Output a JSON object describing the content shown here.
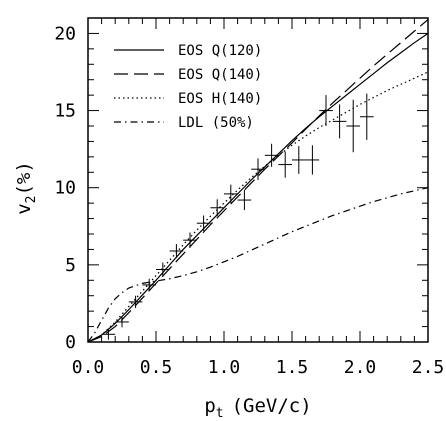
{
  "chart_data": {
    "type": "line",
    "title": "",
    "xlabel": "p",
    "xlabel_sub": "t",
    "xlabel_unit": "(GeV/c)",
    "ylabel": "v",
    "ylabel_sub": "2",
    "ylabel_unit": "(%)",
    "xlim": [
      0,
      2.5
    ],
    "ylim": [
      0,
      21
    ],
    "xticks": [
      "0.0",
      "0.5",
      "1.0",
      "1.5",
      "2.0",
      "2.5"
    ],
    "yticks": [
      "0",
      "5",
      "10",
      "15",
      "20"
    ],
    "grid": false,
    "legend_position": "top-left",
    "series": [
      {
        "name": "EOS Q(120)",
        "style": "solid",
        "x": [
          0.0,
          0.1,
          0.2,
          0.3,
          0.4,
          0.5,
          0.6,
          0.7,
          0.8,
          0.9,
          1.0,
          1.1,
          1.2,
          1.3,
          1.4,
          1.5,
          1.6,
          1.7,
          1.8,
          1.9,
          2.0,
          2.1,
          2.2,
          2.3,
          2.4,
          2.5
        ],
        "y": [
          0.0,
          0.45,
          1.2,
          2.1,
          3.05,
          4.0,
          5.0,
          6.0,
          6.9,
          7.8,
          8.7,
          9.6,
          10.5,
          11.35,
          12.2,
          13.05,
          13.85,
          14.6,
          15.3,
          16.0,
          16.7,
          17.4,
          18.1,
          18.75,
          19.4,
          20.0
        ]
      },
      {
        "name": "EOS Q(140)",
        "style": "dashed",
        "x": [
          0.0,
          0.1,
          0.2,
          0.3,
          0.4,
          0.5,
          0.6,
          0.7,
          0.8,
          0.9,
          1.0,
          1.1,
          1.2,
          1.3,
          1.4,
          1.5,
          1.6,
          1.7,
          1.8,
          1.9,
          2.0,
          2.1,
          2.2,
          2.3,
          2.4,
          2.5
        ],
        "y": [
          0.0,
          0.35,
          1.0,
          1.9,
          2.85,
          3.8,
          4.75,
          5.7,
          6.65,
          7.6,
          8.5,
          9.4,
          10.3,
          11.2,
          12.05,
          12.9,
          13.8,
          14.65,
          15.5,
          16.3,
          17.1,
          17.9,
          18.65,
          19.4,
          20.15,
          20.9
        ]
      },
      {
        "name": "EOS H(140)",
        "style": "dotted",
        "x": [
          0.0,
          0.1,
          0.2,
          0.3,
          0.4,
          0.5,
          0.6,
          0.7,
          0.8,
          0.9,
          1.0,
          1.1,
          1.2,
          1.3,
          1.4,
          1.5,
          1.6,
          1.7,
          1.8,
          1.9,
          2.0,
          2.1,
          2.2,
          2.3,
          2.4,
          2.5
        ],
        "y": [
          0.0,
          0.45,
          1.3,
          2.3,
          3.3,
          4.3,
          5.3,
          6.3,
          7.25,
          8.15,
          9.0,
          9.85,
          10.65,
          11.4,
          12.1,
          12.75,
          13.35,
          13.9,
          14.4,
          14.9,
          15.4,
          15.85,
          16.3,
          16.7,
          17.1,
          17.5
        ]
      },
      {
        "name": "LDL (50%)",
        "style": "dashdot",
        "x": [
          0.0,
          0.05,
          0.1,
          0.15,
          0.2,
          0.25,
          0.3,
          0.4,
          0.5,
          0.6,
          0.7,
          0.8,
          0.9,
          1.0,
          1.1,
          1.2,
          1.3,
          1.4,
          1.5,
          1.6,
          1.7,
          1.8,
          1.9,
          2.0,
          2.1,
          2.2,
          2.3,
          2.4,
          2.5
        ],
        "y": [
          0.0,
          0.6,
          1.4,
          2.2,
          2.8,
          3.2,
          3.5,
          3.8,
          3.95,
          4.1,
          4.3,
          4.55,
          4.85,
          5.2,
          5.55,
          5.95,
          6.35,
          6.75,
          7.15,
          7.5,
          7.85,
          8.2,
          8.5,
          8.8,
          9.1,
          9.35,
          9.6,
          9.8,
          10.0
        ]
      }
    ],
    "data_points": [
      {
        "x": 0.15,
        "y": 0.5,
        "xerr": 0.05,
        "yerr": 0.35
      },
      {
        "x": 0.25,
        "y": 1.3,
        "xerr": 0.05,
        "yerr": 0.35
      },
      {
        "x": 0.35,
        "y": 2.6,
        "xerr": 0.05,
        "yerr": 0.4
      },
      {
        "x": 0.45,
        "y": 3.7,
        "xerr": 0.05,
        "yerr": 0.4
      },
      {
        "x": 0.55,
        "y": 4.7,
        "xerr": 0.05,
        "yerr": 0.45
      },
      {
        "x": 0.65,
        "y": 5.9,
        "xerr": 0.05,
        "yerr": 0.45
      },
      {
        "x": 0.75,
        "y": 6.6,
        "xerr": 0.05,
        "yerr": 0.5
      },
      {
        "x": 0.85,
        "y": 7.7,
        "xerr": 0.05,
        "yerr": 0.5
      },
      {
        "x": 0.95,
        "y": 8.7,
        "xerr": 0.05,
        "yerr": 0.55
      },
      {
        "x": 1.05,
        "y": 9.6,
        "xerr": 0.05,
        "yerr": 0.6
      },
      {
        "x": 1.15,
        "y": 9.2,
        "xerr": 0.05,
        "yerr": 0.65
      },
      {
        "x": 1.25,
        "y": 11.2,
        "xerr": 0.05,
        "yerr": 0.7
      },
      {
        "x": 1.35,
        "y": 12.1,
        "xerr": 0.05,
        "yerr": 0.75
      },
      {
        "x": 1.45,
        "y": 11.5,
        "xerr": 0.05,
        "yerr": 0.85
      },
      {
        "x": 1.55,
        "y": 11.8,
        "xerr": 0.05,
        "yerr": 0.9
      },
      {
        "x": 1.65,
        "y": 11.8,
        "xerr": 0.05,
        "yerr": 0.95
      },
      {
        "x": 1.75,
        "y": 15.0,
        "xerr": 0.05,
        "yerr": 1.0
      },
      {
        "x": 1.85,
        "y": 14.3,
        "xerr": 0.05,
        "yerr": 1.1
      },
      {
        "x": 1.95,
        "y": 14.0,
        "xerr": 0.05,
        "yerr": 1.7
      },
      {
        "x": 2.05,
        "y": 14.6,
        "xerr": 0.05,
        "yerr": 1.5
      }
    ]
  }
}
